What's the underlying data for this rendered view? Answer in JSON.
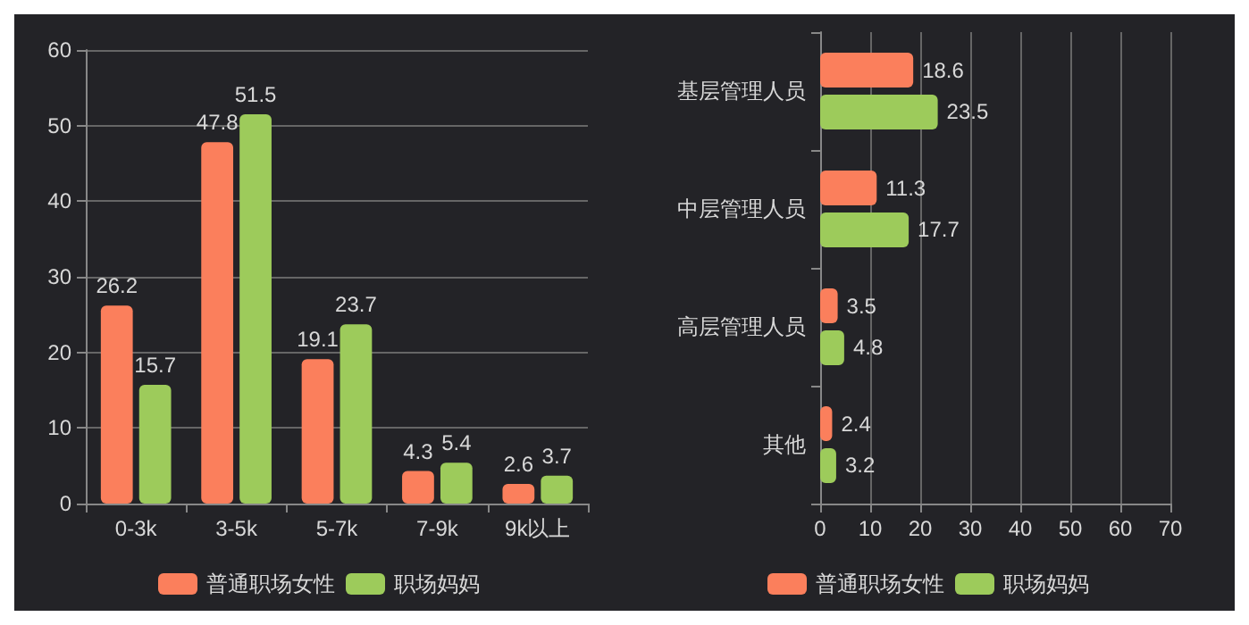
{
  "chart_data": [
    {
      "type": "bar",
      "categories": [
        "0-3k",
        "3-5k",
        "5-7k",
        "7-9k",
        "9k以上"
      ],
      "series": [
        {
          "name": "普通职场女性",
          "color": "#fb7f5c",
          "values": [
            26.2,
            47.8,
            19.1,
            4.3,
            2.6
          ]
        },
        {
          "name": "职场妈妈",
          "color": "#9dcb5b",
          "values": [
            15.7,
            51.5,
            23.7,
            5.4,
            3.7
          ]
        }
      ],
      "ylim": [
        0,
        60
      ],
      "yticks": [
        0,
        10,
        20,
        30,
        40,
        50,
        60
      ],
      "grid": "y",
      "legend": "bottom",
      "data_labels": true
    },
    {
      "type": "bar",
      "orientation": "horizontal",
      "categories": [
        "基层管理人员",
        "中层管理人员",
        "高层管理人员",
        "其他"
      ],
      "series": [
        {
          "name": "普通职场女性",
          "color": "#fb7f5c",
          "values": [
            18.6,
            11.3,
            3.5,
            2.4
          ]
        },
        {
          "name": "职场妈妈",
          "color": "#9dcb5b",
          "values": [
            23.5,
            17.7,
            4.8,
            3.2
          ]
        }
      ],
      "xlim": [
        0,
        70
      ],
      "xticks": [
        0,
        10,
        20,
        30,
        40,
        50,
        60,
        70
      ],
      "grid": "x",
      "legend": "bottom",
      "data_labels": true
    }
  ]
}
